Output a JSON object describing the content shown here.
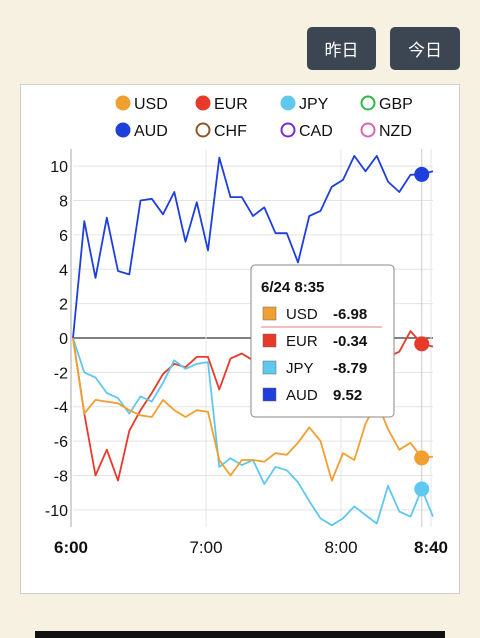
{
  "header": {
    "yesterday_label": "昨日",
    "today_label": "今日"
  },
  "legend": [
    {
      "name": "USD",
      "color": "#f0a030",
      "filled": true
    },
    {
      "name": "EUR",
      "color": "#e83a2a",
      "filled": true
    },
    {
      "name": "JPY",
      "color": "#5ec8ee",
      "filled": true
    },
    {
      "name": "GBP",
      "color": "#33b548",
      "filled": false
    },
    {
      "name": "AUD",
      "color": "#1e3fdc",
      "filled": true
    },
    {
      "name": "CHF",
      "color": "#8b5a2b",
      "filled": false
    },
    {
      "name": "CAD",
      "color": "#7a2bd6",
      "filled": false
    },
    {
      "name": "NZD",
      "color": "#e060b8",
      "filled": false
    }
  ],
  "chart_data": {
    "type": "line",
    "x_start": "6:00",
    "x_end": "8:40",
    "x_ticks": [
      "6:00",
      "7:00",
      "8:00",
      "8:40"
    ],
    "ylim": [
      -11,
      11
    ],
    "y_ticks": [
      10,
      8,
      6,
      4,
      2,
      0,
      -2,
      -4,
      -6,
      -8,
      -10
    ],
    "grid": true,
    "legend_position": "top",
    "cursor_time": "8:35",
    "series": [
      {
        "name": "AUD",
        "color": "#1e3fdc",
        "values": [
          0,
          6.8,
          3.5,
          7,
          3.9,
          3.7,
          8,
          8.1,
          7.2,
          8.5,
          5.6,
          7.9,
          5.1,
          10.5,
          8.2,
          8.2,
          7.1,
          7.6,
          6.1,
          6.1,
          4.4,
          7.1,
          7.4,
          8.8,
          9.2,
          10.6,
          9.7,
          10.6,
          9.1,
          8.5,
          9.5,
          9.52,
          9.7
        ]
      },
      {
        "name": "EUR",
        "color": "#e83a2a",
        "values": [
          0,
          -4.4,
          -8,
          -6.5,
          -8.3,
          -5.4,
          -4.2,
          -3.2,
          -2.1,
          -1.5,
          -1.7,
          -1.1,
          -1.1,
          -3,
          -1.2,
          -0.9,
          -1.3,
          -1.1,
          -1.2,
          -2.2,
          -0.9,
          -1.2,
          -1.4,
          -1.1,
          -1.6,
          -2,
          -2.6,
          -2.4,
          -1.1,
          -0.8,
          0.4,
          -0.34,
          -0.5
        ]
      },
      {
        "name": "JPY",
        "color": "#5ec8ee",
        "values": [
          0,
          -2,
          -2.3,
          -3.2,
          -3.5,
          -4.4,
          -3.4,
          -3.7,
          -2.6,
          -1.3,
          -1.8,
          -1.5,
          -1.4,
          -7.5,
          -7,
          -7.4,
          -7.1,
          -8.5,
          -7.5,
          -7.7,
          -8.4,
          -9.5,
          -10.5,
          -10.9,
          -10.5,
          -9.8,
          -10.3,
          -10.8,
          -8.6,
          -10.1,
          -10.4,
          -8.79,
          -10.4
        ]
      },
      {
        "name": "USD",
        "color": "#f0a030",
        "values": [
          0,
          -4.4,
          -3.6,
          -3.7,
          -3.8,
          -4.2,
          -4.5,
          -4.6,
          -3.6,
          -4.2,
          -4.6,
          -4.2,
          -4.3,
          -7.1,
          -8,
          -7.1,
          -7.1,
          -7.2,
          -6.7,
          -6.8,
          -6.1,
          -5.2,
          -6,
          -8.3,
          -6.7,
          -7.1,
          -5,
          -3.7,
          -5.3,
          -6.5,
          -6.1,
          -6.98,
          -6.9
        ]
      }
    ]
  },
  "tooltip": {
    "title": "6/24 8:35",
    "rows": [
      {
        "name": "USD",
        "value": "-6.98",
        "color": "#f0a030"
      },
      {
        "name": "EUR",
        "value": "-0.34",
        "color": "#e83a2a"
      },
      {
        "name": "JPY",
        "value": "-8.79",
        "color": "#5ec8ee"
      },
      {
        "name": "AUD",
        "value": "9.52",
        "color": "#1e3fdc"
      }
    ]
  }
}
